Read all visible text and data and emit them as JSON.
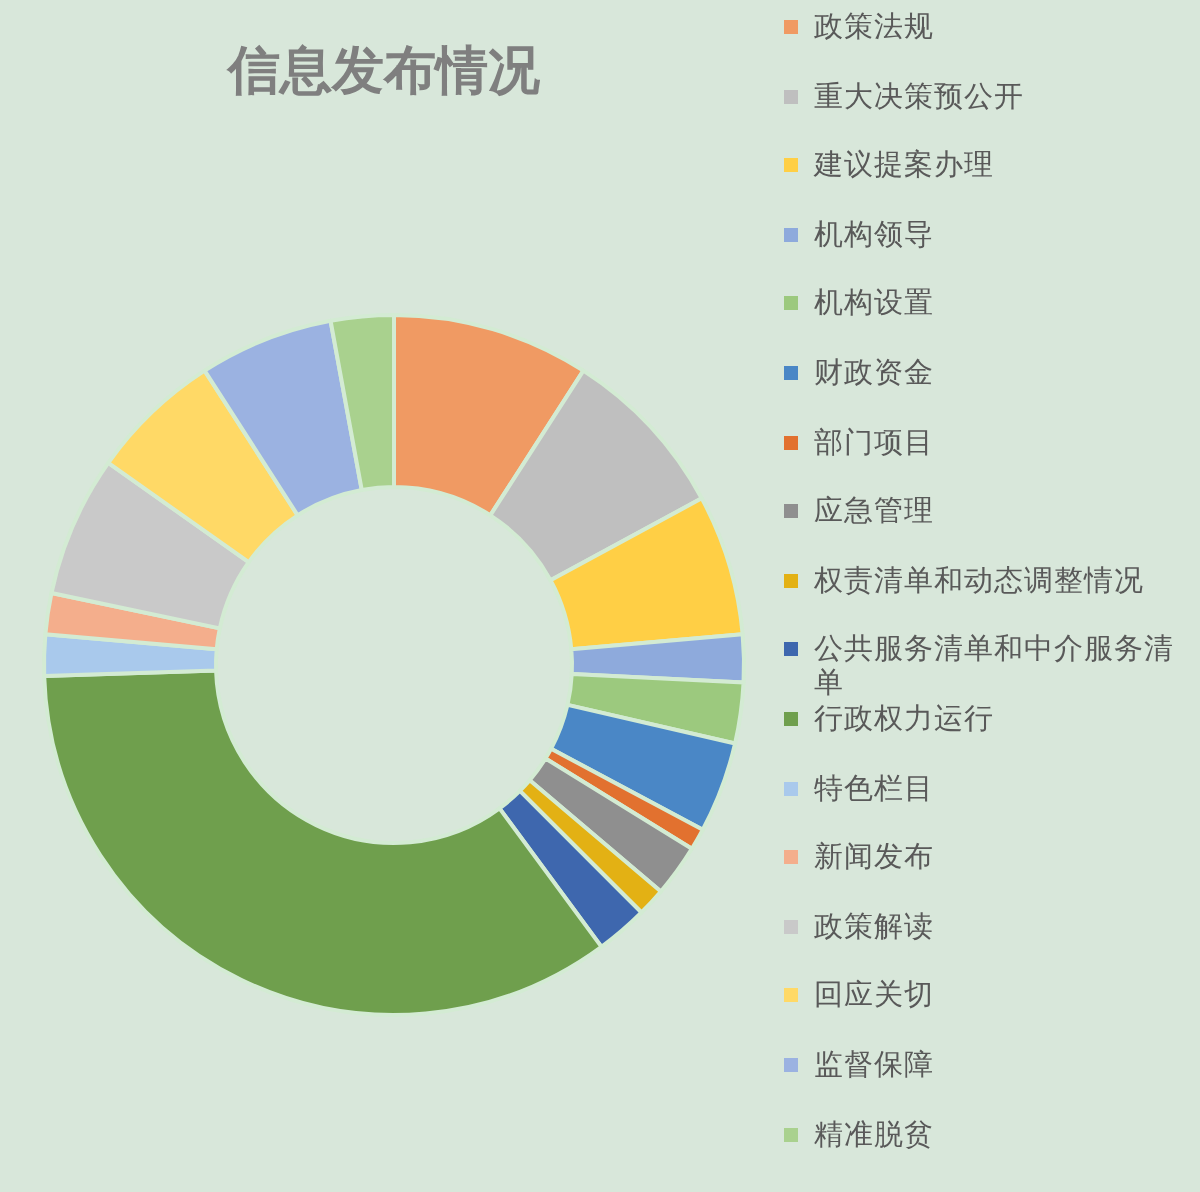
{
  "chart_data": {
    "type": "donut",
    "title": "信息发布情况",
    "categories": [
      "政策法规",
      "重大决策预公开",
      "建议提案办理",
      "机构领导",
      "机构设置",
      "财政资金",
      "部门项目",
      "应急管理",
      "权责清单和动态调整情况",
      "公共服务清单和中介服务清单",
      "行政权力运行",
      "特色栏目",
      "新闻发布",
      "政策解读",
      "回应关切",
      "监督保障",
      "精准脱贫"
    ],
    "values": [
      9.1,
      8.0,
      6.5,
      2.2,
      2.8,
      4.2,
      1.0,
      2.4,
      1.3,
      2.4,
      34.6,
      1.9,
      1.9,
      6.5,
      6.1,
      6.2,
      2.9
    ],
    "colors": [
      "#f09a63",
      "#bfbfbf",
      "#ffcf45",
      "#8eaadc",
      "#9cc97e",
      "#4a87c6",
      "#e2712f",
      "#8f8f8f",
      "#e3b114",
      "#3e67ae",
      "#6f9f4d",
      "#a9c9ec",
      "#f4ae8c",
      "#c9c9c9",
      "#ffd966",
      "#9bb2e1",
      "#a9d18e"
    ],
    "legend": "right"
  }
}
